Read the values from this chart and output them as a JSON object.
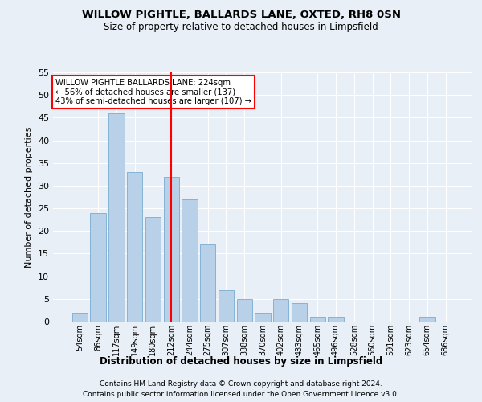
{
  "title1": "WILLOW PIGHTLE, BALLARDS LANE, OXTED, RH8 0SN",
  "title2": "Size of property relative to detached houses in Limpsfield",
  "xlabel": "Distribution of detached houses by size in Limpsfield",
  "ylabel": "Number of detached properties",
  "categories": [
    "54sqm",
    "86sqm",
    "117sqm",
    "149sqm",
    "180sqm",
    "212sqm",
    "244sqm",
    "275sqm",
    "307sqm",
    "338sqm",
    "370sqm",
    "402sqm",
    "433sqm",
    "465sqm",
    "496sqm",
    "528sqm",
    "560sqm",
    "591sqm",
    "623sqm",
    "654sqm",
    "686sqm"
  ],
  "values": [
    2,
    24,
    46,
    33,
    23,
    32,
    27,
    17,
    7,
    5,
    2,
    5,
    4,
    1,
    1,
    0,
    0,
    0,
    0,
    1,
    0
  ],
  "bar_color": "#b8d0e8",
  "bar_edge_color": "#7aacd0",
  "vline_color": "red",
  "vline_index": 5.5,
  "annotation_text": "WILLOW PIGHTLE BALLARDS LANE: 224sqm\n← 56% of detached houses are smaller (137)\n43% of semi-detached houses are larger (107) →",
  "annotation_box_color": "white",
  "annotation_box_edge": "red",
  "ylim": [
    0,
    55
  ],
  "yticks": [
    0,
    5,
    10,
    15,
    20,
    25,
    30,
    35,
    40,
    45,
    50,
    55
  ],
  "footer1": "Contains HM Land Registry data © Crown copyright and database right 2024.",
  "footer2": "Contains public sector information licensed under the Open Government Licence v3.0.",
  "background_color": "#e8eff6",
  "grid_color": "white"
}
